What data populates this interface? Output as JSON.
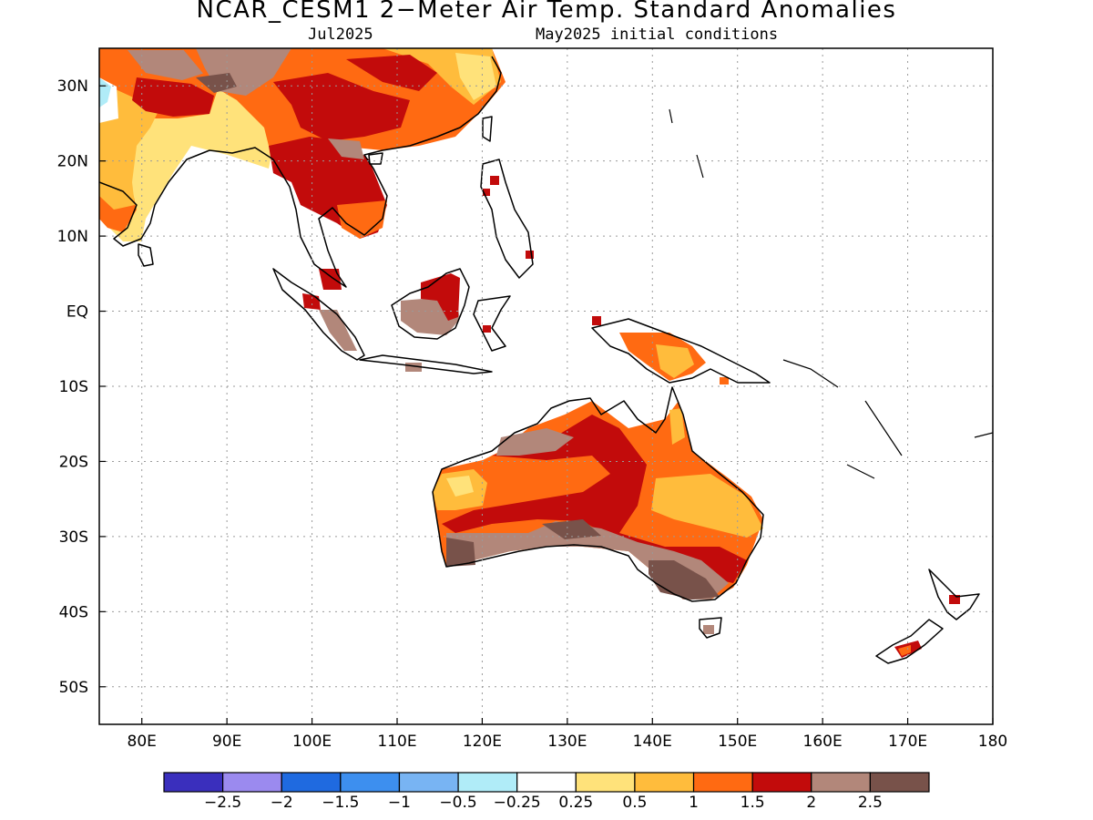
{
  "title": "NCAR_CESM1 2−Meter Air Temp. Standard Anomalies",
  "subtitle_left": "Jul2025",
  "subtitle_right": "May2025 initial conditions",
  "map": {
    "lon_range": [
      75,
      180
    ],
    "lat_range": [
      -55,
      35
    ],
    "lat_ticks": [
      {
        "v": 30,
        "label": "30N"
      },
      {
        "v": 20,
        "label": "20N"
      },
      {
        "v": 10,
        "label": "10N"
      },
      {
        "v": 0,
        "label": "EQ"
      },
      {
        "v": -10,
        "label": "10S"
      },
      {
        "v": -20,
        "label": "20S"
      },
      {
        "v": -30,
        "label": "30S"
      },
      {
        "v": -40,
        "label": "40S"
      },
      {
        "v": -50,
        "label": "50S"
      }
    ],
    "lon_ticks": [
      {
        "v": 80,
        "label": "80E"
      },
      {
        "v": 90,
        "label": "90E"
      },
      {
        "v": 100,
        "label": "100E"
      },
      {
        "v": 110,
        "label": "110E"
      },
      {
        "v": 120,
        "label": "120E"
      },
      {
        "v": 130,
        "label": "130E"
      },
      {
        "v": 140,
        "label": "140E"
      },
      {
        "v": 150,
        "label": "150E"
      },
      {
        "v": 160,
        "label": "160E"
      },
      {
        "v": 170,
        "label": "170E"
      },
      {
        "v": 180,
        "label": "180"
      }
    ],
    "grid": "dotted"
  },
  "colorbar": {
    "colors": [
      "#3a2fbd",
      "#9b8aef",
      "#1f6ae0",
      "#3d8fef",
      "#78b4f3",
      "#b0ecf8",
      "#ffffff",
      "#ffe27a",
      "#ffbc3c",
      "#ff6a12",
      "#c20b0b",
      "#b2877a",
      "#78524a"
    ],
    "labels": [
      "−2.5",
      "−2",
      "−1.5",
      "−1",
      "−0.5",
      "−0.25",
      "0.25",
      "0.5",
      "1",
      "1.5",
      "2",
      "2.5"
    ]
  }
}
